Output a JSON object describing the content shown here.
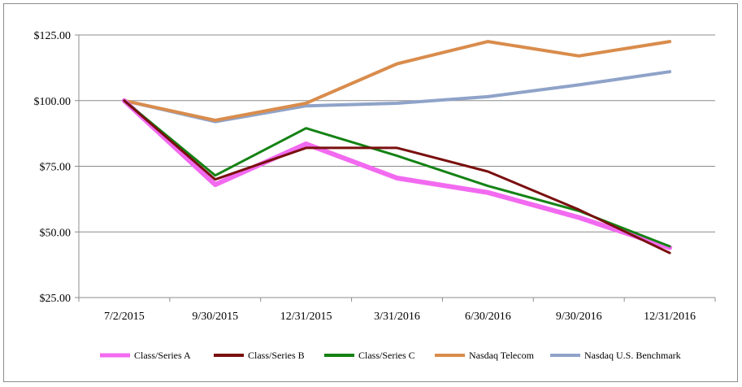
{
  "chart_data": {
    "type": "line",
    "categories": [
      "7/2/2015",
      "9/30/2015",
      "12/31/2015",
      "3/31/2016",
      "6/30/2016",
      "9/30/2016",
      "12/31/2016"
    ],
    "ylim": [
      25,
      125
    ],
    "yticks": [
      25,
      50,
      75,
      100,
      125
    ],
    "ytick_labels": [
      "$25.00",
      "$50.00",
      "$75.00",
      "$100.00",
      "$125.00"
    ],
    "grid": "horizontal",
    "legend_position": "bottom",
    "series": [
      {
        "name": "Class/Series A",
        "color": "#f26af0",
        "values": [
          100.0,
          68.0,
          83.5,
          70.5,
          65.0,
          55.5,
          44.0
        ]
      },
      {
        "name": "Class/Series B",
        "color": "#7a0f0f",
        "values": [
          100.0,
          70.0,
          82.0,
          82.0,
          73.0,
          58.5,
          42.0
        ]
      },
      {
        "name": "Class/Series C",
        "color": "#148214",
        "values": [
          100.0,
          71.5,
          89.5,
          79.0,
          67.5,
          58.0,
          44.5
        ]
      },
      {
        "name": "Nasdaq Telecom",
        "color": "#d98c4c",
        "values": [
          100.0,
          92.5,
          99.0,
          114.0,
          122.5,
          117.0,
          122.5
        ]
      },
      {
        "name": "Nasdaq U.S. Benchmark",
        "color": "#8fa3c9",
        "values": [
          100.0,
          92.0,
          98.0,
          99.0,
          101.5,
          106.0,
          111.0
        ]
      }
    ]
  }
}
